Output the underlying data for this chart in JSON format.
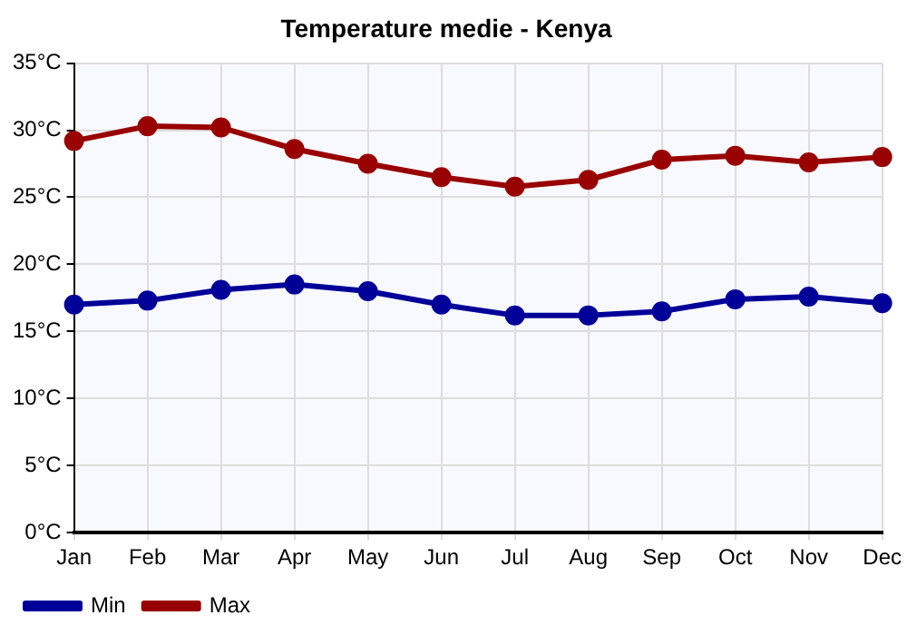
{
  "chart_data": {
    "type": "line",
    "title": "Temperature medie - Kenya",
    "categories": [
      "Jan",
      "Feb",
      "Mar",
      "Apr",
      "May",
      "Jun",
      "Jul",
      "Aug",
      "Sep",
      "Oct",
      "Nov",
      "Dec"
    ],
    "series": [
      {
        "name": "Min",
        "color": "#000099",
        "values": [
          17.0,
          17.3,
          18.1,
          18.5,
          18.0,
          17.0,
          16.2,
          16.2,
          16.5,
          17.4,
          17.6,
          17.1
        ]
      },
      {
        "name": "Max",
        "color": "#990000",
        "values": [
          29.2,
          30.3,
          30.2,
          28.6,
          27.5,
          26.5,
          25.8,
          26.3,
          27.8,
          28.1,
          27.6,
          28.0
        ]
      }
    ],
    "ylim": [
      0,
      35
    ],
    "yticks": [
      {
        "value": 0,
        "label": "0°C"
      },
      {
        "value": 5,
        "label": "5°C"
      },
      {
        "value": 10,
        "label": "10°C"
      },
      {
        "value": 15,
        "label": "15°C"
      },
      {
        "value": 20,
        "label": "20°C"
      },
      {
        "value": 25,
        "label": "25°C"
      },
      {
        "value": 30,
        "label": "30°C"
      },
      {
        "value": 35,
        "label": "35°C"
      }
    ],
    "grid": true,
    "legend": "bottom left",
    "marker": "circle",
    "line_style": "solid"
  }
}
